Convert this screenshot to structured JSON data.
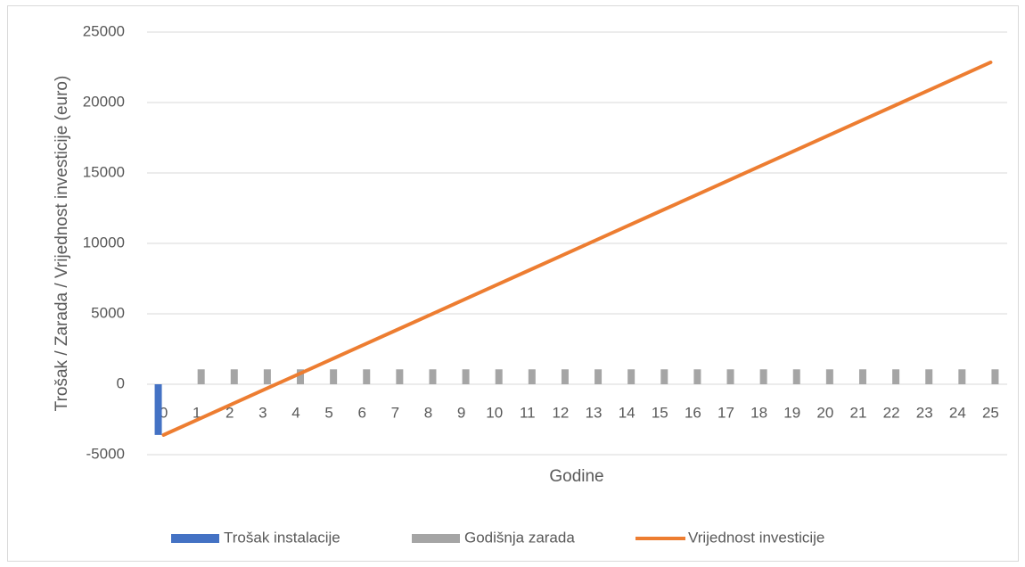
{
  "chart_data": {
    "type": "combo",
    "xlabel": "Godine",
    "ylabel": "Trošak / Zarada / Vrijednost investicije (euro)",
    "categories": [
      "0",
      "1",
      "2",
      "3",
      "4",
      "5",
      "6",
      "7",
      "8",
      "9",
      "10",
      "11",
      "12",
      "13",
      "14",
      "15",
      "16",
      "17",
      "18",
      "19",
      "20",
      "21",
      "22",
      "23",
      "24",
      "25"
    ],
    "series": [
      {
        "name": "Trošak instalacije",
        "type": "bar",
        "color": "#4472c4",
        "values": [
          -3600,
          null,
          null,
          null,
          null,
          null,
          null,
          null,
          null,
          null,
          null,
          null,
          null,
          null,
          null,
          null,
          null,
          null,
          null,
          null,
          null,
          null,
          null,
          null,
          null,
          null
        ]
      },
      {
        "name": "Godišnja zarada",
        "type": "bar",
        "color": "#a5a5a5",
        "values": [
          null,
          1058,
          1058,
          1058,
          1058,
          1058,
          1058,
          1058,
          1058,
          1058,
          1058,
          1058,
          1058,
          1058,
          1058,
          1058,
          1058,
          1058,
          1058,
          1058,
          1058,
          1058,
          1058,
          1058,
          1058,
          1058
        ]
      },
      {
        "name": "Vrijednost investicije",
        "type": "line",
        "color": "#ed7d31",
        "values": [
          -3600,
          -2542,
          -1484,
          -426,
          632,
          1690,
          2748,
          3806,
          4864,
          5922,
          6980,
          8038,
          9096,
          10154,
          11212,
          12270,
          13328,
          14386,
          15444,
          16502,
          17560,
          18618,
          19676,
          20734,
          21792,
          22850
        ]
      }
    ],
    "ylim": [
      -5000,
      25000
    ],
    "yticks": [
      -5000,
      0,
      5000,
      10000,
      15000,
      20000,
      25000
    ],
    "grid": true,
    "legend": "bottom"
  }
}
